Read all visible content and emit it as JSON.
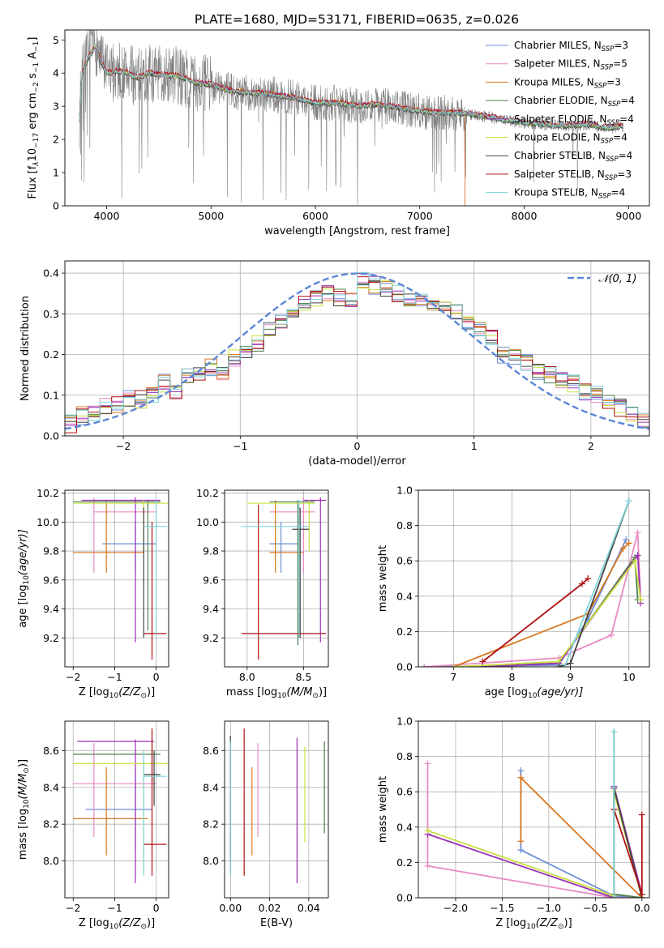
{
  "figure": {
    "title": "PLATE=1680, MJD=53171, FIBERID=0635, z=0.026"
  },
  "colors": {
    "chabrier_miles": "#6b8ed6",
    "salpeter_miles": "#e88ac3",
    "kroupa_miles": "#d97820",
    "chabrier_elodie": "#4f7f4f",
    "salpeter_elodie": "#9b2fb5",
    "kroupa_elodie": "#c8e040",
    "chabrier_stelib": "#444444",
    "salpeter_stelib": "#b01010",
    "kroupa_stelib": "#7fd4dc",
    "data": "#808080",
    "gauss": "#5b86d6",
    "grid": "#b0b0b0"
  },
  "legend_models": [
    {
      "name": "Chabrier MILES",
      "nssp": "3",
      "color": "chabrier_miles"
    },
    {
      "name": "Salpeter MILES",
      "nssp": "5",
      "color": "salpeter_miles"
    },
    {
      "name": "Kroupa MILES",
      "nssp": "3",
      "color": "kroupa_miles"
    },
    {
      "name": "Chabrier ELODIE",
      "nssp": "4",
      "color": "chabrier_elodie"
    },
    {
      "name": "Salpeter ELODIE",
      "nssp": "4",
      "color": "salpeter_elodie"
    },
    {
      "name": "Kroupa ELODIE",
      "nssp": "4",
      "color": "kroupa_elodie"
    },
    {
      "name": "Chabrier STELIB",
      "nssp": "4",
      "color": "chabrier_stelib"
    },
    {
      "name": "Salpeter STELIB",
      "nssp": "3",
      "color": "salpeter_stelib"
    },
    {
      "name": "Kroupa STELIB",
      "nssp": "4",
      "color": "kroupa_stelib"
    }
  ],
  "chart_data": [
    {
      "id": "spectrum",
      "type": "line",
      "xlabel": "wavelength [Angstrom, rest frame]",
      "ylabel_parts": [
        "Flux [f",
        "λ",
        "10",
        "−17",
        " erg cm",
        "−2",
        " s",
        "−1",
        " A",
        "−1",
        "]"
      ],
      "xlim": [
        3600,
        9200
      ],
      "ylim": [
        0,
        5.3
      ],
      "xticks": [
        4000,
        5000,
        6000,
        7000,
        8000,
        9000
      ],
      "yticks": [
        0,
        1,
        2,
        3,
        4,
        5
      ],
      "legend": "top-right",
      "grid": false,
      "continuum": [
        [
          3740,
          2.6
        ],
        [
          3760,
          3.9
        ],
        [
          3800,
          4.3
        ],
        [
          3850,
          4.6
        ],
        [
          3900,
          4.8
        ],
        [
          3950,
          4.3
        ],
        [
          4000,
          4.0
        ],
        [
          4100,
          4.05
        ],
        [
          4200,
          4.0
        ],
        [
          4300,
          3.85
        ],
        [
          4400,
          4.0
        ],
        [
          4500,
          3.95
        ],
        [
          4700,
          3.9
        ],
        [
          4860,
          3.7
        ],
        [
          5000,
          3.65
        ],
        [
          5200,
          3.45
        ],
        [
          5400,
          3.4
        ],
        [
          5600,
          3.35
        ],
        [
          5800,
          3.25
        ],
        [
          6000,
          3.1
        ],
        [
          6200,
          3.1
        ],
        [
          6400,
          3.0
        ],
        [
          6560,
          3.05
        ],
        [
          6700,
          3.0
        ],
        [
          6900,
          2.9
        ],
        [
          7000,
          2.85
        ],
        [
          7200,
          2.8
        ],
        [
          7400,
          2.8
        ],
        [
          7600,
          2.7
        ],
        [
          7800,
          2.6
        ],
        [
          8000,
          2.5
        ],
        [
          8200,
          2.45
        ],
        [
          8400,
          2.4
        ],
        [
          8600,
          2.45
        ],
        [
          8800,
          2.35
        ],
        [
          8950,
          2.4
        ]
      ]
    },
    {
      "id": "residuals",
      "type": "histogram",
      "xlabel": "(data-model)/error",
      "ylabel": "Normed distribution",
      "xlim": [
        -2.5,
        2.5
      ],
      "ylim": [
        0,
        0.43
      ],
      "xticks": [
        -2,
        -1,
        0,
        1,
        2
      ],
      "yticks": [
        0.0,
        0.1,
        0.2,
        0.3,
        0.4
      ],
      "legend_label": "𝒩(0, 1)",
      "legend": "top-right",
      "grid": true,
      "bin_edges": [
        -2.5,
        -2.4,
        -2.3,
        -2.2,
        -2.1,
        -2.0,
        -1.9,
        -1.8,
        -1.7,
        -1.6,
        -1.5,
        -1.4,
        -1.3,
        -1.2,
        -1.1,
        -1.0,
        -0.9,
        -0.8,
        -0.7,
        -0.6,
        -0.5,
        -0.4,
        -0.3,
        -0.2,
        -0.1,
        0.0,
        0.1,
        0.2,
        0.3,
        0.4,
        0.5,
        0.6,
        0.7,
        0.8,
        0.9,
        1.0,
        1.1,
        1.2,
        1.3,
        1.4,
        1.5,
        1.6,
        1.7,
        1.8,
        1.9,
        2.0,
        2.1,
        2.2,
        2.3,
        2.4,
        2.5
      ],
      "series_base": [
        0.03,
        0.05,
        0.06,
        0.07,
        0.08,
        0.09,
        0.09,
        0.1,
        0.13,
        0.11,
        0.15,
        0.15,
        0.17,
        0.16,
        0.19,
        0.2,
        0.23,
        0.26,
        0.28,
        0.31,
        0.33,
        0.34,
        0.35,
        0.34,
        0.33,
        0.38,
        0.37,
        0.36,
        0.35,
        0.34,
        0.33,
        0.32,
        0.31,
        0.3,
        0.28,
        0.26,
        0.24,
        0.2,
        0.19,
        0.18,
        0.16,
        0.15,
        0.14,
        0.13,
        0.11,
        0.1,
        0.08,
        0.07,
        0.05,
        0.04
      ]
    },
    {
      "id": "age_vs_z",
      "type": "errorbar",
      "xlabel_parts": [
        "Z [log",
        "10",
        "(Z/Z",
        "⊙",
        ")]"
      ],
      "ylabel_parts": [
        "age  [log",
        "10",
        "(age/yr)]"
      ],
      "xlim": [
        -2.2,
        0.3
      ],
      "ylim": [
        9.0,
        10.22
      ],
      "xticks": [
        -2,
        -1,
        0
      ],
      "yticks": [
        9.2,
        9.4,
        9.6,
        9.8,
        10.0,
        10.2
      ],
      "points": [
        {
          "s": "chabrier_miles",
          "x": -0.5,
          "xlo": -1.3,
          "xhi": 0.0,
          "y": 9.85,
          "ylo": 9.65,
          "yhi": 10.0
        },
        {
          "s": "salpeter_miles",
          "x": -1.5,
          "xlo": -1.5,
          "xhi": 0.0,
          "y": 10.07,
          "ylo": 9.65,
          "yhi": 10.17
        },
        {
          "s": "kroupa_miles",
          "x": -1.2,
          "xlo": -2.0,
          "xhi": -0.3,
          "y": 9.79,
          "ylo": 9.65,
          "yhi": 10.15
        },
        {
          "s": "chabrier_elodie",
          "x": -0.2,
          "xlo": -2.0,
          "xhi": 0.1,
          "y": 10.14,
          "ylo": 9.25,
          "yhi": 10.15
        },
        {
          "s": "salpeter_elodie",
          "x": -0.5,
          "xlo": -1.8,
          "xhi": 0.1,
          "y": 10.15,
          "ylo": 9.17,
          "yhi": 10.17
        },
        {
          "s": "kroupa_elodie",
          "x": -0.3,
          "xlo": -2.0,
          "xhi": 0.3,
          "y": 10.13,
          "ylo": 9.8,
          "yhi": 10.15
        },
        {
          "s": "chabrier_stelib",
          "x": -0.3,
          "xlo": -0.3,
          "xhi": -0.3,
          "y": 9.95,
          "ylo": 9.2,
          "yhi": 10.1
        },
        {
          "s": "salpeter_stelib",
          "x": -0.1,
          "xlo": -0.3,
          "xhi": 0.25,
          "y": 9.23,
          "ylo": 9.05,
          "yhi": 10.0
        },
        {
          "s": "kroupa_stelib",
          "x": 0.0,
          "xlo": -0.3,
          "xhi": 0.25,
          "y": 9.97,
          "ylo": 9.2,
          "yhi": 10.15
        }
      ]
    },
    {
      "id": "age_vs_mass",
      "type": "errorbar",
      "xlabel_parts": [
        "mass [log",
        "10",
        "(M/M",
        "⊙",
        ")]"
      ],
      "xlim": [
        7.8,
        8.72
      ],
      "ylim": [
        9.0,
        10.22
      ],
      "xticks": [
        8.0,
        8.5
      ],
      "yticks": [
        9.2,
        9.4,
        9.6,
        9.8,
        10.0,
        10.2
      ],
      "points": [
        {
          "s": "chabrier_miles",
          "x": 8.3,
          "xlo": 8.2,
          "xhi": 8.45,
          "y": 9.85,
          "ylo": 9.65,
          "yhi": 10.0
        },
        {
          "s": "salpeter_miles",
          "x": 8.5,
          "xlo": 8.2,
          "xhi": 8.6,
          "y": 10.07,
          "ylo": 9.65,
          "yhi": 10.17
        },
        {
          "s": "kroupa_miles",
          "x": 8.25,
          "xlo": 8.2,
          "xhi": 8.5,
          "y": 9.79,
          "ylo": 9.65,
          "yhi": 10.15
        },
        {
          "s": "chabrier_elodie",
          "x": 8.45,
          "xlo": 8.2,
          "xhi": 8.6,
          "y": 10.14,
          "ylo": 9.15,
          "yhi": 10.15
        },
        {
          "s": "salpeter_elodie",
          "x": 8.65,
          "xlo": 8.5,
          "xhi": 8.7,
          "y": 10.15,
          "ylo": 9.17,
          "yhi": 10.17
        },
        {
          "s": "kroupa_elodie",
          "x": 8.55,
          "xlo": 8.0,
          "xhi": 8.6,
          "y": 10.13,
          "ylo": 9.8,
          "yhi": 10.15
        },
        {
          "s": "chabrier_stelib",
          "x": 8.47,
          "xlo": 8.4,
          "xhi": 8.55,
          "y": 9.95,
          "ylo": 9.2,
          "yhi": 10.1
        },
        {
          "s": "salpeter_stelib",
          "x": 8.1,
          "xlo": 7.95,
          "xhi": 8.7,
          "y": 9.23,
          "ylo": 9.05,
          "yhi": 10.12
        },
        {
          "s": "kroupa_stelib",
          "x": 8.46,
          "xlo": 7.95,
          "xhi": 8.55,
          "y": 9.97,
          "ylo": 9.2,
          "yhi": 10.15
        }
      ]
    },
    {
      "id": "weight_vs_age",
      "type": "line",
      "xlabel_parts": [
        "age  [log",
        "10",
        "(age/yr)]"
      ],
      "ylabel": "mass weight",
      "xlim": [
        6.4,
        10.35
      ],
      "ylim": [
        0,
        1.0
      ],
      "xticks": [
        7,
        8,
        9,
        10
      ],
      "yticks": [
        0.0,
        0.2,
        0.4,
        0.6,
        0.8,
        1.0
      ],
      "series": [
        {
          "s": "chabrier_miles",
          "x": [
            6.5,
            8.8,
            9.3,
            9.95
          ],
          "y": [
            0.0,
            0.01,
            0.27,
            0.72
          ]
        },
        {
          "s": "salpeter_miles",
          "x": [
            6.5,
            8.8,
            9.7,
            10.15,
            10.2
          ],
          "y": [
            0.0,
            0.05,
            0.18,
            0.76,
            0.38
          ]
        },
        {
          "s": "kroupa_miles",
          "x": [
            7.0,
            9.3,
            9.9,
            10.0
          ],
          "y": [
            0.0,
            0.3,
            0.67,
            0.7
          ]
        },
        {
          "s": "chabrier_elodie",
          "x": [
            7.0,
            8.8,
            10.1,
            10.15
          ],
          "y": [
            0.0,
            0.02,
            0.62,
            0.38
          ]
        },
        {
          "s": "salpeter_elodie",
          "x": [
            7.5,
            8.8,
            10.15,
            10.2
          ],
          "y": [
            0.0,
            0.02,
            0.63,
            0.36
          ]
        },
        {
          "s": "kroupa_elodie",
          "x": [
            7.0,
            8.8,
            10.1,
            10.2
          ],
          "y": [
            0.0,
            0.03,
            0.6,
            0.38
          ]
        },
        {
          "s": "chabrier_stelib",
          "x": [
            8.8,
            9.0,
            10.0
          ],
          "y": [
            0.0,
            0.02,
            0.94
          ]
        },
        {
          "s": "salpeter_stelib",
          "x": [
            7.5,
            9.2,
            9.3
          ],
          "y": [
            0.03,
            0.47,
            0.5
          ]
        },
        {
          "s": "kroupa_stelib",
          "x": [
            8.9,
            10.0
          ],
          "y": [
            0.0,
            0.94
          ]
        }
      ]
    },
    {
      "id": "mass_vs_z",
      "type": "errorbar",
      "xlabel_parts": [
        "Z [log",
        "10",
        "(Z/Z",
        "⊙",
        ")]"
      ],
      "ylabel_parts": [
        "mass [log",
        "10",
        "(M/M",
        "⊙",
        ")]"
      ],
      "xlim": [
        -2.2,
        0.3
      ],
      "ylim": [
        7.8,
        8.76
      ],
      "xticks": [
        -2,
        -1,
        0
      ],
      "yticks": [
        8.0,
        8.2,
        8.4,
        8.6
      ],
      "points": [
        {
          "s": "chabrier_miles",
          "x": -0.5,
          "xlo": -1.7,
          "xhi": -0.1,
          "y": 8.28,
          "ylo": 8.05,
          "yhi": 8.5
        },
        {
          "s": "salpeter_miles",
          "x": -1.5,
          "xlo": -2.0,
          "xhi": 0.0,
          "y": 8.42,
          "ylo": 8.13,
          "yhi": 8.64
        },
        {
          "s": "kroupa_miles",
          "x": -1.2,
          "xlo": -2.0,
          "xhi": -0.2,
          "y": 8.23,
          "ylo": 8.03,
          "yhi": 8.51
        },
        {
          "s": "chabrier_elodie",
          "x": -0.1,
          "xlo": -2.0,
          "xhi": 0.1,
          "y": 8.58,
          "ylo": 8.43,
          "yhi": 8.63
        },
        {
          "s": "salpeter_elodie",
          "x": -0.5,
          "xlo": -1.9,
          "xhi": -0.05,
          "y": 8.65,
          "ylo": 7.88,
          "yhi": 8.66
        },
        {
          "s": "kroupa_elodie",
          "x": -0.3,
          "xlo": -2.0,
          "xhi": 0.3,
          "y": 8.53,
          "ylo": 7.95,
          "yhi": 8.55
        },
        {
          "s": "chabrier_stelib",
          "x": -0.05,
          "xlo": -0.3,
          "xhi": 0.1,
          "y": 8.47,
          "ylo": 8.3,
          "yhi": 8.6
        },
        {
          "s": "salpeter_stelib",
          "x": -0.1,
          "xlo": -0.3,
          "xhi": 0.25,
          "y": 8.09,
          "ylo": 7.92,
          "yhi": 8.72
        },
        {
          "s": "kroupa_stelib",
          "x": -0.3,
          "xlo": -0.3,
          "xhi": 0.25,
          "y": 8.46,
          "ylo": 7.92,
          "yhi": 8.6
        }
      ]
    },
    {
      "id": "mass_vs_ebv",
      "type": "errorbar",
      "xlabel": "E(B-V)",
      "xlim": [
        -0.003,
        0.05
      ],
      "ylim": [
        7.8,
        8.76
      ],
      "xticks": [
        0.0,
        0.02,
        0.04
      ],
      "yticks": [
        8.0,
        8.2,
        8.4,
        8.6
      ],
      "points": [
        {
          "s": "chabrier_miles",
          "x": 0.0,
          "y": 8.28,
          "ylo": 7.95,
          "yhi": 8.65
        },
        {
          "s": "salpeter_miles",
          "x": 0.014,
          "y": 8.42,
          "ylo": 8.13,
          "yhi": 8.64
        },
        {
          "s": "kroupa_miles",
          "x": 0.011,
          "y": 8.23,
          "ylo": 8.03,
          "yhi": 8.51
        },
        {
          "s": "chabrier_elodie",
          "x": 0.048,
          "y": 8.58,
          "ylo": 8.15,
          "yhi": 8.65
        },
        {
          "s": "salpeter_elodie",
          "x": 0.034,
          "y": 8.65,
          "ylo": 7.88,
          "yhi": 8.67
        },
        {
          "s": "kroupa_elodie",
          "x": 0.038,
          "y": 8.53,
          "ylo": 8.1,
          "yhi": 8.62
        },
        {
          "s": "chabrier_stelib",
          "x": 0.0,
          "y": 8.47,
          "ylo": 8.0,
          "yhi": 8.68
        },
        {
          "s": "salpeter_stelib",
          "x": 0.007,
          "y": 8.09,
          "ylo": 7.92,
          "yhi": 8.72
        },
        {
          "s": "kroupa_stelib",
          "x": 0.0,
          "y": 8.46,
          "ylo": 7.92,
          "yhi": 8.65
        }
      ]
    },
    {
      "id": "weight_vs_z",
      "type": "line",
      "xlabel_parts": [
        "Z [log",
        "10",
        "(Z/Z",
        "⊙",
        ")]"
      ],
      "ylabel": "mass weight",
      "xlim": [
        -2.4,
        0.08
      ],
      "ylim": [
        0,
        1.0
      ],
      "xticks": [
        -2.0,
        -1.5,
        -1.0,
        -0.5,
        0.0
      ],
      "yticks": [
        0.0,
        0.2,
        0.4,
        0.6,
        0.8,
        1.0
      ],
      "series": [
        {
          "s": "chabrier_miles",
          "x": [
            -1.3,
            -1.3,
            -0.3,
            0.0
          ],
          "y": [
            0.72,
            0.27,
            0.01,
            0.0
          ]
        },
        {
          "s": "salpeter_miles",
          "x": [
            -2.3,
            -2.3,
            -0.3,
            0.0
          ],
          "y": [
            0.76,
            0.18,
            0.0,
            0.0
          ]
        },
        {
          "s": "kroupa_miles",
          "x": [
            -1.3,
            -1.3,
            0.0,
            0.0
          ],
          "y": [
            0.32,
            0.68,
            0.0,
            0.02
          ]
        },
        {
          "s": "chabrier_elodie",
          "x": [
            -0.3,
            -0.3,
            0.0
          ],
          "y": [
            0.94,
            0.02,
            0.0
          ]
        },
        {
          "s": "salpeter_elodie",
          "x": [
            -2.3,
            -0.3,
            -0.3,
            0.0
          ],
          "y": [
            0.36,
            0.0,
            0.63,
            0.02
          ]
        },
        {
          "s": "kroupa_elodie",
          "x": [
            -2.3,
            -0.3,
            -0.3,
            0.0
          ],
          "y": [
            0.38,
            0.01,
            0.6,
            0.0
          ]
        },
        {
          "s": "chabrier_stelib",
          "x": [
            -0.3,
            -0.3,
            0.0
          ],
          "y": [
            0.5,
            0.62,
            0.0
          ]
        },
        {
          "s": "salpeter_stelib",
          "x": [
            -0.3,
            0.0,
            0.0
          ],
          "y": [
            0.5,
            0.02,
            0.47
          ]
        },
        {
          "s": "kroupa_stelib",
          "x": [
            -0.3,
            -0.3
          ],
          "y": [
            0.94,
            0.0
          ]
        }
      ]
    }
  ]
}
